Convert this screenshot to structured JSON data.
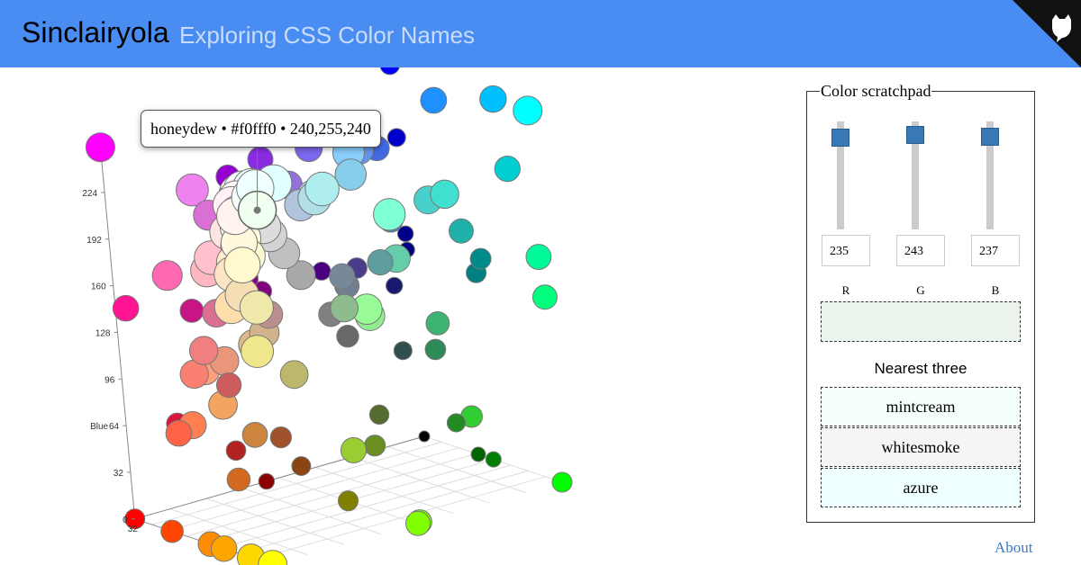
{
  "header": {
    "title": "Sinclairyola",
    "subtitle": "Exploring CSS Color Names"
  },
  "chart_data": {
    "type": "scatter3d",
    "axis_label": "Blue",
    "zticks": [
      0,
      32,
      64,
      96,
      128,
      160,
      192,
      224
    ],
    "green_ticks": [
      32
    ],
    "points": [
      [
        255,
        0,
        255
      ],
      [
        199,
        21,
        133
      ],
      [
        255,
        20,
        147
      ],
      [
        219,
        112,
        147
      ],
      [
        255,
        105,
        180
      ],
      [
        255,
        182,
        193
      ],
      [
        255,
        192,
        203
      ],
      [
        238,
        130,
        238
      ],
      [
        221,
        160,
        221
      ],
      [
        218,
        112,
        214
      ],
      [
        186,
        85,
        211
      ],
      [
        153,
        50,
        204
      ],
      [
        148,
        0,
        211
      ],
      [
        138,
        43,
        226
      ],
      [
        128,
        0,
        128
      ],
      [
        139,
        0,
        139
      ],
      [
        75,
        0,
        130
      ],
      [
        72,
        61,
        139
      ],
      [
        106,
        90,
        205
      ],
      [
        123,
        104,
        238
      ],
      [
        147,
        112,
        219
      ],
      [
        0,
        0,
        255
      ],
      [
        0,
        0,
        205
      ],
      [
        0,
        0,
        139
      ],
      [
        0,
        0,
        128
      ],
      [
        25,
        25,
        112
      ],
      [
        65,
        105,
        225
      ],
      [
        30,
        144,
        255
      ],
      [
        100,
        149,
        237
      ],
      [
        70,
        130,
        180
      ],
      [
        135,
        206,
        250
      ],
      [
        135,
        206,
        235
      ],
      [
        0,
        191,
        255
      ],
      [
        173,
        216,
        230
      ],
      [
        176,
        196,
        222
      ],
      [
        176,
        224,
        230
      ],
      [
        175,
        238,
        238
      ],
      [
        224,
        255,
        255
      ],
      [
        0,
        255,
        255
      ],
      [
        0,
        206,
        209
      ],
      [
        72,
        209,
        204
      ],
      [
        64,
        224,
        208
      ],
      [
        127,
        255,
        212
      ],
      [
        102,
        205,
        170
      ],
      [
        32,
        178,
        170
      ],
      [
        95,
        158,
        160
      ],
      [
        0,
        128,
        128
      ],
      [
        0,
        139,
        139
      ],
      [
        47,
        79,
        79
      ],
      [
        112,
        128,
        144
      ],
      [
        119,
        136,
        153
      ],
      [
        128,
        128,
        128
      ],
      [
        105,
        105,
        105
      ],
      [
        169,
        169,
        169
      ],
      [
        192,
        192,
        192
      ],
      [
        211,
        211,
        211
      ],
      [
        220,
        220,
        220
      ],
      [
        245,
        245,
        245
      ],
      [
        255,
        255,
        255
      ],
      [
        248,
        248,
        255
      ],
      [
        240,
        248,
        255
      ],
      [
        255,
        250,
        250
      ],
      [
        255,
        240,
        245
      ],
      [
        255,
        228,
        225
      ],
      [
        250,
        235,
        215
      ],
      [
        255,
        235,
        205
      ],
      [
        255,
        228,
        196
      ],
      [
        255,
        222,
        173
      ],
      [
        245,
        222,
        179
      ],
      [
        222,
        184,
        135
      ],
      [
        210,
        180,
        140
      ],
      [
        188,
        143,
        143
      ],
      [
        244,
        164,
        96
      ],
      [
        255,
        160,
        122
      ],
      [
        250,
        128,
        114
      ],
      [
        233,
        150,
        122
      ],
      [
        240,
        128,
        128
      ],
      [
        205,
        92,
        92
      ],
      [
        220,
        20,
        60
      ],
      [
        178,
        34,
        34
      ],
      [
        139,
        0,
        0
      ],
      [
        165,
        42,
        42
      ],
      [
        160,
        82,
        45
      ],
      [
        139,
        69,
        19
      ],
      [
        210,
        105,
        30
      ],
      [
        205,
        133,
        63
      ],
      [
        255,
        127,
        80
      ],
      [
        255,
        99,
        71
      ],
      [
        255,
        69,
        0
      ],
      [
        255,
        0,
        0
      ],
      [
        255,
        140,
        0
      ],
      [
        255,
        165,
        0
      ],
      [
        255,
        215,
        0
      ],
      [
        255,
        255,
        0
      ],
      [
        240,
        230,
        140
      ],
      [
        238,
        232,
        170
      ],
      [
        189,
        183,
        107
      ],
      [
        128,
        128,
        0
      ],
      [
        107,
        142,
        35
      ],
      [
        85,
        107,
        47
      ],
      [
        154,
        205,
        50
      ],
      [
        124,
        252,
        0
      ],
      [
        127,
        255,
        0
      ],
      [
        0,
        255,
        0
      ],
      [
        50,
        205,
        50
      ],
      [
        144,
        238,
        144
      ],
      [
        152,
        251,
        152
      ],
      [
        143,
        188,
        143
      ],
      [
        60,
        179,
        113
      ],
      [
        46,
        139,
        87
      ],
      [
        34,
        139,
        34
      ],
      [
        0,
        128,
        0
      ],
      [
        0,
        100,
        0
      ],
      [
        0,
        250,
        154
      ],
      [
        0,
        255,
        127
      ],
      [
        0,
        0,
        0
      ],
      [
        255,
        250,
        240
      ],
      [
        253,
        245,
        230
      ],
      [
        255,
        255,
        240
      ],
      [
        255,
        255,
        224
      ],
      [
        250,
        250,
        210
      ],
      [
        255,
        248,
        220
      ],
      [
        255,
        250,
        205
      ],
      [
        255,
        245,
        238
      ],
      [
        245,
        255,
        250
      ],
      [
        240,
        255,
        255
      ]
    ],
    "highlight": {
      "label": "honeydew • #f0fff0 • 240,255,240",
      "rgb": [
        240,
        255,
        240
      ]
    }
  },
  "scratchpad": {
    "title": "Color scratchpad",
    "range": [
      0,
      255
    ],
    "channels": [
      {
        "label": "R",
        "value": 235
      },
      {
        "label": "G",
        "value": 243
      },
      {
        "label": "B",
        "value": 237
      }
    ],
    "nearest_title": "Nearest three",
    "nearest": [
      "mintcream",
      "whitesmoke",
      "azure"
    ]
  },
  "footer": {
    "link": "About"
  }
}
